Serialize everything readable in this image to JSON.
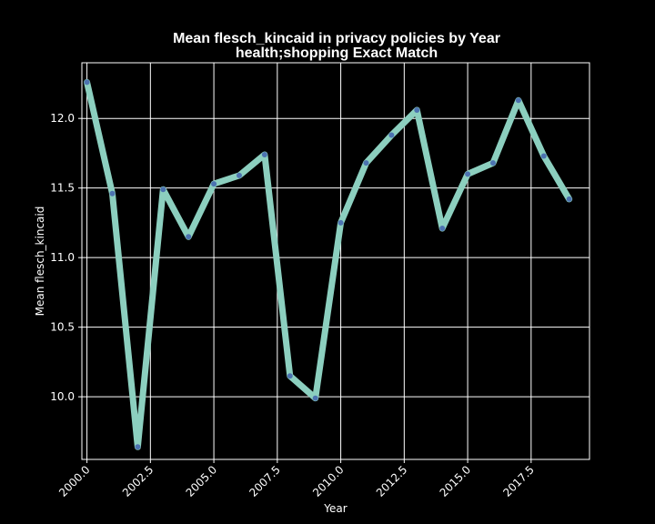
{
  "chart_data": {
    "type": "line",
    "title": "Mean flesch_kincaid in privacy policies by Year",
    "subtitle": "health;shopping Exact Match",
    "xlabel": "Year",
    "ylabel": "Mean flesch_kincaid",
    "xlim": [
      1999.8,
      2019.8
    ],
    "ylim": [
      9.55,
      12.4
    ],
    "x_ticks": [
      "2000.0",
      "2002.5",
      "2005.0",
      "2007.5",
      "2010.0",
      "2012.5",
      "2015.0",
      "2017.5"
    ],
    "x_tick_values": [
      2000,
      2002.5,
      2005,
      2007.5,
      2010,
      2012.5,
      2015,
      2017.5
    ],
    "y_ticks": [
      "10.0",
      "10.5",
      "11.0",
      "11.5",
      "12.0"
    ],
    "y_tick_values": [
      10.0,
      10.5,
      11.0,
      11.5,
      12.0
    ],
    "grid": true,
    "series": [
      {
        "x": [
          2000,
          2001,
          2002,
          2003,
          2004,
          2005,
          2006,
          2007,
          2008,
          2009,
          2010,
          2011,
          2012,
          2013,
          2014,
          2015,
          2016,
          2017,
          2018,
          2019
        ],
        "values": [
          12.26,
          11.46,
          9.64,
          11.49,
          11.15,
          11.53,
          11.59,
          11.74,
          10.15,
          9.99,
          11.25,
          11.68,
          11.88,
          12.06,
          11.21,
          11.6,
          11.68,
          12.13,
          11.73,
          11.42
        ]
      }
    ],
    "colors": {
      "background": "#000000",
      "line": "#8ccfbf",
      "marker": "#4c72b0",
      "grid": "#ffffff",
      "text": "#ffffff"
    }
  }
}
